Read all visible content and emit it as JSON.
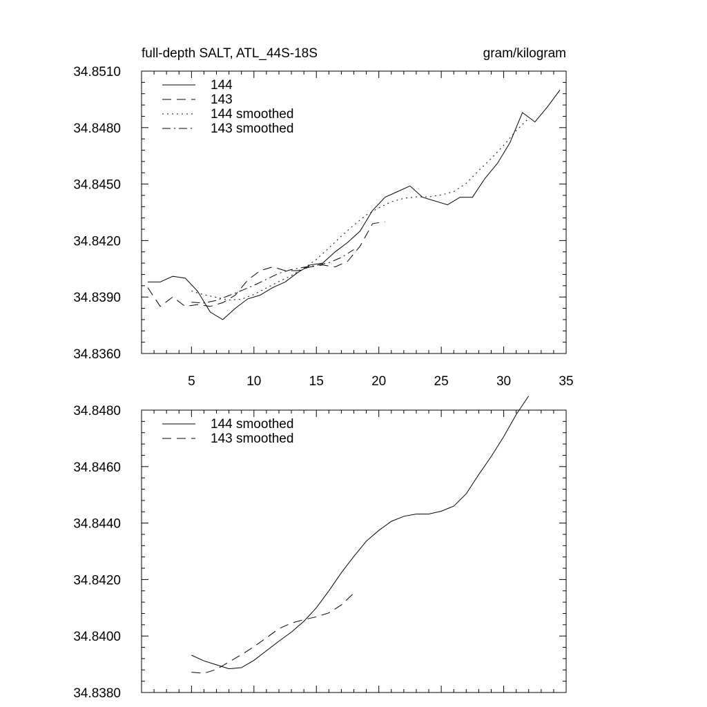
{
  "chart_data": [
    {
      "type": "line",
      "title_left": "full-depth SALT, ATL_44S-18S",
      "title_right": "gram/kilogram",
      "xlabel": "",
      "ylabel": "",
      "xlim": [
        1,
        35
      ],
      "ylim": [
        34.836,
        34.851
      ],
      "x_ticks": [
        5,
        10,
        15,
        20,
        25,
        30,
        35
      ],
      "x_tick_labels": [
        "5",
        "10",
        "15",
        "20",
        "25",
        "30",
        "35"
      ],
      "y_ticks": [
        34.836,
        34.839,
        34.842,
        34.845,
        34.848,
        34.851
      ],
      "y_tick_labels": [
        "34.8360",
        "34.8390",
        "34.8420",
        "34.8450",
        "34.8480",
        "34.8510"
      ],
      "grid": false,
      "legend": "top-left",
      "series": [
        {
          "name": "144",
          "style": "solid",
          "x": [
            1.5,
            2.5,
            3.5,
            4.5,
            5.5,
            6.5,
            7.5,
            8.5,
            9.5,
            10.5,
            11.5,
            12.5,
            13.5,
            14.5,
            15.5,
            16.5,
            17.5,
            18.5,
            19.5,
            20.5,
            21.5,
            22.5,
            23.5,
            24.5,
            25.5,
            26.5,
            27.5,
            28.5,
            29.5,
            30.5,
            31.5,
            32.5,
            33.5,
            34.5
          ],
          "values": [
            34.8398,
            34.8398,
            34.8401,
            34.84,
            34.8393,
            34.8382,
            34.8378,
            34.8384,
            34.8389,
            34.8391,
            34.8395,
            34.8398,
            34.8403,
            34.8407,
            34.8408,
            34.8414,
            34.8419,
            34.8425,
            34.8436,
            34.8443,
            34.8446,
            34.8449,
            34.8443,
            34.8441,
            34.8439,
            34.8443,
            34.8443,
            34.8453,
            34.8461,
            34.8472,
            34.8488,
            34.8483,
            34.8491,
            34.85
          ]
        },
        {
          "name": "143",
          "style": "dashed",
          "x": [
            1.5,
            2.5,
            3.5,
            4.5,
            5.5,
            6.5,
            7.5,
            8.5,
            9.5,
            10.5,
            11.5,
            12.5,
            13.5,
            14.5,
            15.5,
            16.5,
            17.5,
            18.5,
            19.5,
            20.5
          ],
          "values": [
            34.8395,
            34.8385,
            34.839,
            34.8385,
            34.8386,
            34.8385,
            34.8387,
            34.8391,
            34.8399,
            34.8404,
            34.8406,
            34.8404,
            34.8404,
            34.8406,
            34.8407,
            34.8406,
            34.8409,
            34.8417,
            34.8429,
            34.843
          ]
        },
        {
          "name": "144 smoothed",
          "style": "dotted",
          "x": [
            5,
            6,
            7,
            8,
            9,
            10,
            11,
            12,
            13,
            14,
            15,
            16,
            17,
            18,
            19,
            20,
            21,
            22,
            23,
            24,
            25,
            26,
            27,
            28,
            29,
            30,
            31,
            32
          ],
          "values": [
            34.83932,
            34.83912,
            34.83898,
            34.83884,
            34.83888,
            34.83914,
            34.83948,
            34.83982,
            34.84014,
            34.84052,
            34.841,
            34.8416,
            34.84224,
            34.84282,
            34.84336,
            34.84374,
            34.84406,
            34.84424,
            34.84432,
            34.84432,
            34.84442,
            34.8446,
            34.84504,
            34.84572,
            34.84636,
            34.84706,
            34.84784,
            34.8485
          ]
        },
        {
          "name": "143 smoothed",
          "style": "dashdot",
          "x": [
            5,
            6,
            7,
            8,
            9,
            10,
            11,
            12,
            13,
            14,
            15,
            16,
            17,
            18
          ],
          "values": [
            34.83872,
            34.83868,
            34.83882,
            34.83908,
            34.83934,
            34.83962,
            34.83994,
            34.84026,
            34.84046,
            34.84058,
            34.84068,
            34.84082,
            34.8411,
            34.84152
          ]
        }
      ]
    },
    {
      "type": "line",
      "xlabel": "",
      "ylabel": "",
      "xlim": [
        1,
        35
      ],
      "ylim": [
        34.838,
        34.848
      ],
      "x_ticks": [
        5,
        10,
        15,
        20,
        25,
        30,
        35
      ],
      "y_ticks": [
        34.838,
        34.84,
        34.842,
        34.844,
        34.846,
        34.848
      ],
      "y_tick_labels": [
        "34.8380",
        "34.8400",
        "34.8420",
        "34.8440",
        "34.8460",
        "34.8480"
      ],
      "grid": false,
      "legend": "top-left",
      "series": [
        {
          "name": "144 smoothed",
          "style": "solid",
          "x": [
            5,
            6,
            7,
            8,
            9,
            10,
            11,
            12,
            13,
            14,
            15,
            16,
            17,
            18,
            19,
            20,
            21,
            22,
            23,
            24,
            25,
            26,
            27,
            28,
            29,
            30,
            31,
            32
          ],
          "values": [
            34.83932,
            34.83912,
            34.83898,
            34.83884,
            34.83888,
            34.83914,
            34.83948,
            34.83982,
            34.84014,
            34.84052,
            34.841,
            34.8416,
            34.84224,
            34.84282,
            34.84336,
            34.84374,
            34.84406,
            34.84424,
            34.84432,
            34.84432,
            34.84442,
            34.8446,
            34.84504,
            34.84572,
            34.84636,
            34.84706,
            34.84784,
            34.8485
          ]
        },
        {
          "name": "143 smoothed",
          "style": "dashed",
          "x": [
            5,
            6,
            7,
            8,
            9,
            10,
            11,
            12,
            13,
            14,
            15,
            16,
            17,
            18
          ],
          "values": [
            34.83872,
            34.83868,
            34.83882,
            34.83908,
            34.83934,
            34.83962,
            34.83994,
            34.84026,
            34.84046,
            34.84058,
            34.84068,
            34.84082,
            34.8411,
            34.84152
          ]
        }
      ]
    }
  ]
}
